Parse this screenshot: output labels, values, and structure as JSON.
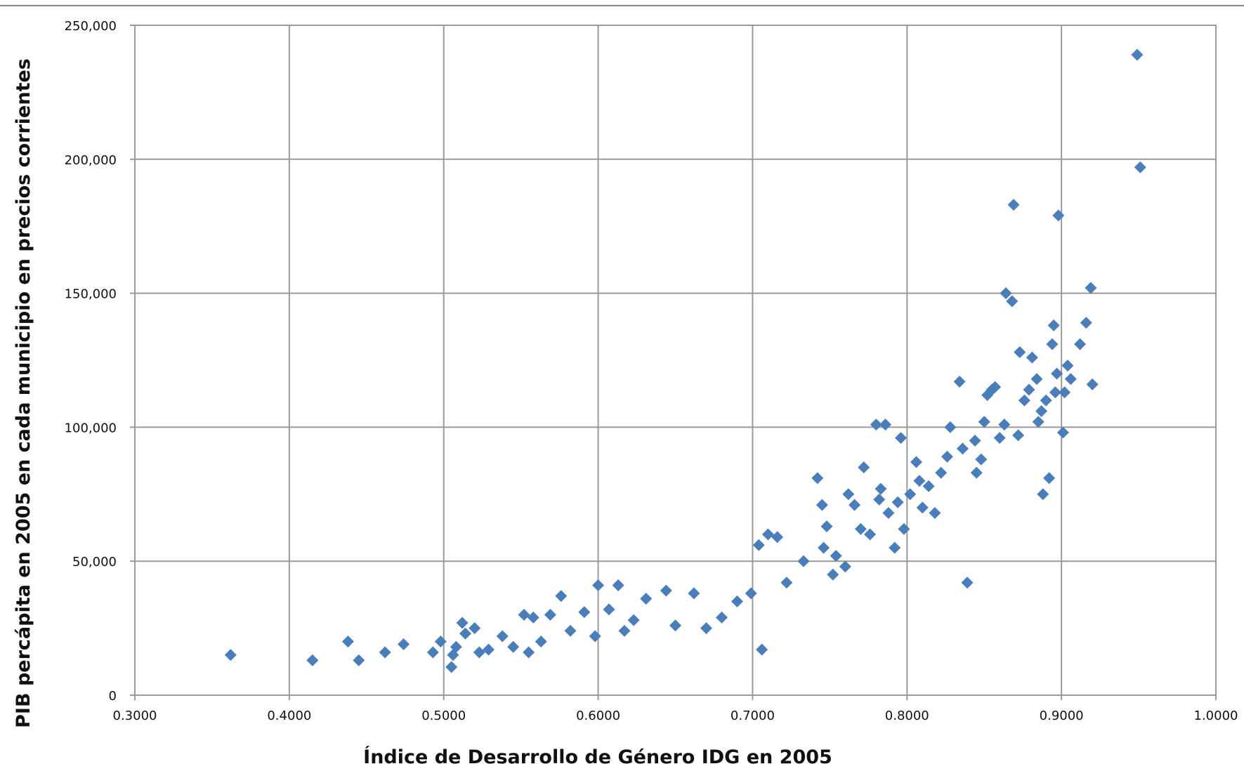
{
  "chart_data": {
    "type": "scatter",
    "title": "",
    "xlabel": "Índice de Desarrollo de Género IDG en 2005",
    "ylabel": "PIB percápita en 2005 en cada municipio en precios corrientes",
    "xlim": [
      0.3,
      1.0
    ],
    "ylim": [
      0,
      250000
    ],
    "x_ticks": [
      "0.3000",
      "0.4000",
      "0.5000",
      "0.6000",
      "0.7000",
      "0.8000",
      "0.9000",
      "1.0000"
    ],
    "y_ticks": [
      "0",
      "50,000",
      "100,000",
      "150,000",
      "200,000",
      "250,000"
    ],
    "grid": true,
    "legend": "none",
    "marker": "diamond",
    "colors": {
      "points": "#4a7ebb",
      "grid": "#9a9a9a",
      "frame": "#9a9a9a"
    },
    "series": [
      {
        "x": [
          0.362,
          0.415,
          0.438,
          0.445,
          0.462,
          0.474,
          0.493,
          0.498,
          0.505,
          0.506,
          0.508,
          0.512,
          0.514,
          0.52,
          0.523,
          0.529,
          0.538,
          0.545,
          0.552,
          0.555,
          0.558,
          0.563,
          0.569,
          0.576,
          0.582,
          0.591,
          0.598,
          0.6,
          0.607,
          0.613,
          0.617,
          0.623,
          0.631,
          0.644,
          0.65,
          0.662,
          0.67,
          0.68,
          0.69,
          0.699,
          0.704,
          0.706,
          0.71,
          0.716,
          0.722,
          0.733,
          0.742,
          0.745,
          0.746,
          0.748,
          0.752,
          0.754,
          0.76,
          0.762,
          0.766,
          0.77,
          0.772,
          0.776,
          0.78,
          0.782,
          0.783,
          0.786,
          0.788,
          0.792,
          0.794,
          0.796,
          0.798,
          0.802,
          0.806,
          0.808,
          0.81,
          0.814,
          0.818,
          0.822,
          0.826,
          0.828,
          0.834,
          0.836,
          0.839,
          0.844,
          0.845,
          0.848,
          0.85,
          0.852,
          0.855,
          0.857,
          0.86,
          0.863,
          0.864,
          0.868,
          0.869,
          0.872,
          0.873,
          0.876,
          0.879,
          0.881,
          0.884,
          0.885,
          0.887,
          0.888,
          0.89,
          0.892,
          0.894,
          0.895,
          0.896,
          0.897,
          0.898,
          0.901,
          0.902,
          0.904,
          0.906,
          0.912,
          0.916,
          0.919,
          0.92,
          0.949,
          0.951
        ],
        "y": [
          15000,
          13000,
          20000,
          13000,
          16000,
          19000,
          16000,
          20000,
          10500,
          15000,
          18000,
          27000,
          23000,
          25000,
          16000,
          17000,
          22000,
          18000,
          30000,
          16000,
          29000,
          20000,
          30000,
          37000,
          24000,
          31000,
          22000,
          41000,
          32000,
          41000,
          24000,
          28000,
          36000,
          39000,
          26000,
          38000,
          25000,
          29000,
          35000,
          38000,
          56000,
          17000,
          60000,
          59000,
          42000,
          50000,
          81000,
          71000,
          55000,
          63000,
          45000,
          52000,
          48000,
          75000,
          71000,
          62000,
          85000,
          60000,
          101000,
          73000,
          77000,
          101000,
          68000,
          55000,
          72000,
          96000,
          62000,
          75000,
          87000,
          80000,
          70000,
          78000,
          68000,
          83000,
          89000,
          100000,
          117000,
          92000,
          42000,
          95000,
          83000,
          88000,
          102000,
          112000,
          114000,
          115000,
          96000,
          101000,
          150000,
          147000,
          183000,
          97000,
          128000,
          110000,
          114000,
          126000,
          118000,
          102000,
          106000,
          75000,
          110000,
          81000,
          131000,
          138000,
          113000,
          120000,
          179000,
          98000,
          113000,
          123000,
          118000,
          131000,
          139000,
          152000,
          116000,
          239000,
          197000
        ]
      }
    ]
  }
}
